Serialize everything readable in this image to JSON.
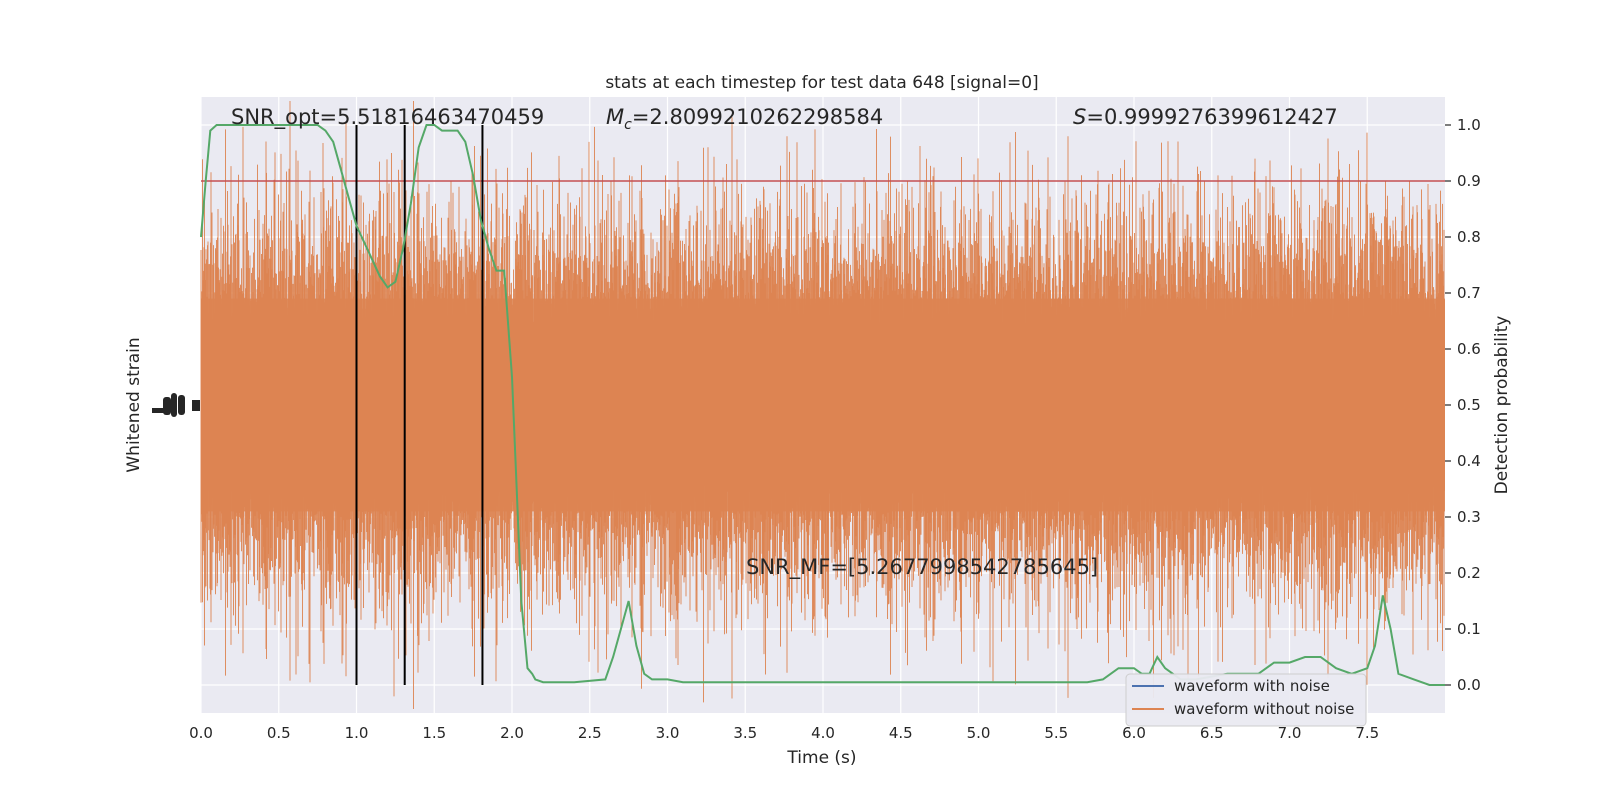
{
  "chart_data": {
    "type": "line",
    "title": "stats at each timestep for test data 648 [signal=0]",
    "xlabel": "Time (s)",
    "ylabel_left": "Whitened strain",
    "ylabel_right": "Detection probability",
    "xlim": [
      0.0,
      8.0
    ],
    "ylim_right": [
      -0.05,
      1.05
    ],
    "x_ticks": [
      "0.0",
      "0.5",
      "1.0",
      "1.5",
      "2.0",
      "2.5",
      "3.0",
      "3.5",
      "4.0",
      "4.5",
      "5.0",
      "5.5",
      "6.0",
      "6.5",
      "7.0",
      "7.5"
    ],
    "x_tick_values": [
      0.0,
      0.5,
      1.0,
      1.5,
      2.0,
      2.5,
      3.0,
      3.5,
      4.0,
      4.5,
      5.0,
      5.5,
      6.0,
      6.5,
      7.0,
      7.5
    ],
    "y_ticks_right": [
      "0.0",
      "0.1",
      "0.2",
      "0.3",
      "0.4",
      "0.5",
      "0.6",
      "0.7",
      "0.8",
      "0.9",
      "1.0"
    ],
    "y_tick_values_right": [
      0.0,
      0.1,
      0.2,
      0.3,
      0.4,
      0.5,
      0.6,
      0.7,
      0.8,
      0.9,
      1.0
    ],
    "grid": true,
    "legend_position": "bottom-right",
    "threshold": {
      "value": 0.9,
      "color": "#c44e52"
    },
    "vertical_markers": [
      1.0,
      1.31,
      1.81
    ],
    "annotations": {
      "snr_opt": "SNR_opt=5.51816463470459",
      "mc_prefix": "M",
      "mc_sub": "c",
      "mc_value": "=2.8099210262298584",
      "s_prefix": "S",
      "s_value": "=0.9999276399612427",
      "snr_mf": "SNR_MF=[5.2677998542785645]"
    },
    "series": [
      {
        "name": "waveform with noise",
        "color": "#4c72b0"
      },
      {
        "name": "waveform without noise",
        "color": "#dd8452"
      },
      {
        "color": "#55a868",
        "x": [
          0.0,
          0.03,
          0.06,
          0.1,
          0.15,
          0.3,
          0.6,
          0.75,
          0.8,
          0.85,
          0.9,
          0.95,
          1.0,
          1.05,
          1.1,
          1.15,
          1.2,
          1.25,
          1.3,
          1.35,
          1.4,
          1.45,
          1.5,
          1.55,
          1.6,
          1.65,
          1.7,
          1.75,
          1.8,
          1.85,
          1.9,
          1.95,
          2.0,
          2.03,
          2.06,
          2.1,
          2.13,
          2.15,
          2.2,
          2.4,
          2.6,
          2.65,
          2.7,
          2.75,
          2.8,
          2.85,
          2.9,
          3.0,
          3.1,
          3.3,
          3.5,
          3.7,
          4.0,
          5.0,
          5.7,
          5.8,
          5.85,
          5.9,
          5.95,
          6.0,
          6.05,
          6.1,
          6.15,
          6.2,
          6.25,
          6.3,
          6.4,
          6.6,
          6.8,
          6.9,
          7.0,
          7.1,
          7.2,
          7.3,
          7.4,
          7.5,
          7.55,
          7.6,
          7.65,
          7.7,
          7.8,
          7.9,
          8.0
        ],
        "y": [
          0.8,
          0.9,
          0.99,
          1.0,
          1.0,
          1.0,
          1.0,
          1.0,
          0.99,
          0.97,
          0.92,
          0.87,
          0.82,
          0.79,
          0.76,
          0.73,
          0.71,
          0.72,
          0.78,
          0.86,
          0.96,
          1.0,
          1.0,
          0.99,
          0.99,
          0.99,
          0.97,
          0.91,
          0.83,
          0.78,
          0.74,
          0.74,
          0.55,
          0.35,
          0.15,
          0.03,
          0.02,
          0.01,
          0.005,
          0.005,
          0.01,
          0.05,
          0.1,
          0.15,
          0.07,
          0.02,
          0.01,
          0.01,
          0.005,
          0.005,
          0.005,
          0.005,
          0.005,
          0.005,
          0.005,
          0.01,
          0.02,
          0.03,
          0.03,
          0.03,
          0.02,
          0.02,
          0.05,
          0.03,
          0.02,
          0.01,
          0.01,
          0.02,
          0.02,
          0.04,
          0.04,
          0.05,
          0.05,
          0.03,
          0.02,
          0.03,
          0.07,
          0.16,
          0.1,
          0.02,
          0.01,
          0.0,
          0.0
        ]
      }
    ]
  }
}
